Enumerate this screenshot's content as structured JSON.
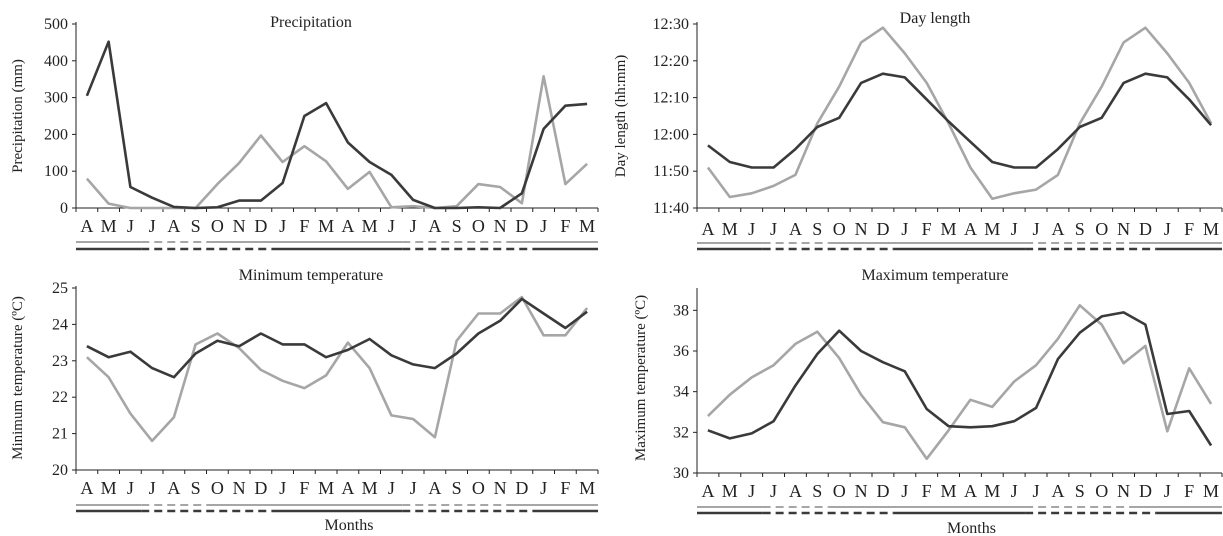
{
  "colors": {
    "dark": "#3a3a3a",
    "light": "#a6a6a6",
    "axis": "#222222"
  },
  "chart_data": [
    {
      "type": "line",
      "title": "Precipitation",
      "ylabel": "Precipitation (mm)",
      "xlabel": "",
      "categories": [
        "A",
        "M",
        "J",
        "J",
        "A",
        "S",
        "O",
        "N",
        "D",
        "J",
        "F",
        "M",
        "A",
        "M",
        "J",
        "J",
        "A",
        "S",
        "O",
        "N",
        "D",
        "J",
        "F",
        "M"
      ],
      "yticks": [
        "0",
        "100",
        "200",
        "300",
        "400",
        "500"
      ],
      "ylim": [
        0,
        500
      ],
      "series": [
        {
          "color": "dark",
          "values": [
            305,
            452,
            57,
            28,
            3,
            0,
            2,
            20,
            20,
            68,
            250,
            285,
            178,
            125,
            90,
            22,
            0,
            0,
            2,
            0,
            40,
            215,
            278,
            283
          ]
        },
        {
          "color": "light",
          "values": [
            80,
            12,
            0,
            0,
            0,
            0,
            65,
            122,
            197,
            125,
            168,
            127,
            52,
            98,
            2,
            5,
            0,
            5,
            65,
            57,
            13,
            358,
            65,
            120
          ]
        }
      ]
    },
    {
      "type": "line",
      "title": "Day length",
      "ylabel": "Day length (hh:mm)",
      "xlabel": "",
      "categories": [
        "A",
        "M",
        "J",
        "J",
        "A",
        "S",
        "O",
        "N",
        "D",
        "J",
        "F",
        "M",
        "A",
        "M",
        "J",
        "J",
        "A",
        "S",
        "O",
        "N",
        "D",
        "J",
        "F",
        "M"
      ],
      "yticks": [
        "11:40",
        "11:50",
        "12:00",
        "12:10",
        "12:20",
        "12:30"
      ],
      "ylim": [
        700,
        750
      ],
      "series": [
        {
          "color": "dark",
          "values": [
            717,
            712.5,
            711,
            711,
            716,
            722,
            724.5,
            734,
            736.5,
            735.5,
            729.5,
            723.5,
            718,
            712.5,
            711,
            711,
            716,
            722,
            724.5,
            734,
            736.5,
            735.5,
            729.5,
            722.5
          ]
        },
        {
          "color": "light",
          "values": [
            711,
            703,
            704,
            706,
            709,
            723,
            733,
            745,
            749,
            742,
            734,
            723,
            711,
            702.5,
            704,
            705,
            709,
            723,
            733,
            745,
            749,
            742,
            734,
            723
          ]
        }
      ]
    },
    {
      "type": "line",
      "title": "Minimum temperature",
      "ylabel": "Minimum temperature (ºC)",
      "xlabel": "Months",
      "categories": [
        "A",
        "M",
        "J",
        "J",
        "A",
        "S",
        "O",
        "N",
        "D",
        "J",
        "F",
        "M",
        "A",
        "M",
        "J",
        "J",
        "A",
        "S",
        "O",
        "N",
        "D",
        "J",
        "F",
        "M"
      ],
      "yticks": [
        "20",
        "21",
        "22",
        "23",
        "24",
        "25"
      ],
      "ylim": [
        20,
        25
      ],
      "series": [
        {
          "color": "dark",
          "values": [
            23.4,
            23.1,
            23.25,
            22.8,
            22.55,
            23.2,
            23.55,
            23.4,
            23.75,
            23.45,
            23.45,
            23.1,
            23.3,
            23.6,
            23.15,
            22.9,
            22.8,
            23.2,
            23.75,
            24.1,
            24.7,
            24.3,
            23.9,
            24.35
          ]
        },
        {
          "color": "light",
          "values": [
            23.1,
            22.55,
            21.55,
            20.8,
            21.45,
            23.45,
            23.75,
            23.35,
            22.75,
            22.45,
            22.25,
            22.6,
            23.5,
            22.8,
            21.5,
            21.4,
            20.9,
            23.55,
            24.3,
            24.3,
            24.75,
            23.7,
            23.7,
            24.45
          ]
        }
      ]
    },
    {
      "type": "line",
      "title": "Maximum temperature",
      "ylabel": "Maximum temperature (ºC)",
      "xlabel": "Months",
      "categories": [
        "A",
        "M",
        "J",
        "J",
        "A",
        "S",
        "O",
        "N",
        "D",
        "J",
        "F",
        "M",
        "A",
        "M",
        "J",
        "J",
        "A",
        "S",
        "O",
        "N",
        "D",
        "J",
        "F",
        "M"
      ],
      "yticks": [
        "30",
        "32",
        "34",
        "36",
        "38"
      ],
      "ylim": [
        30,
        39
      ],
      "series": [
        {
          "color": "dark",
          "values": [
            32.1,
            31.7,
            31.95,
            32.55,
            34.3,
            35.85,
            37.0,
            36.0,
            35.45,
            35.0,
            33.15,
            32.3,
            32.25,
            32.3,
            32.55,
            33.2,
            35.6,
            36.9,
            37.7,
            37.9,
            37.3,
            32.9,
            33.05,
            31.35
          ]
        },
        {
          "color": "light",
          "values": [
            32.8,
            33.85,
            34.7,
            35.3,
            36.35,
            36.95,
            35.65,
            33.85,
            32.5,
            32.25,
            30.7,
            32.1,
            33.6,
            33.25,
            34.5,
            35.3,
            36.6,
            38.25,
            37.3,
            35.4,
            36.25,
            32.05,
            35.15,
            33.4
          ]
        }
      ]
    }
  ]
}
